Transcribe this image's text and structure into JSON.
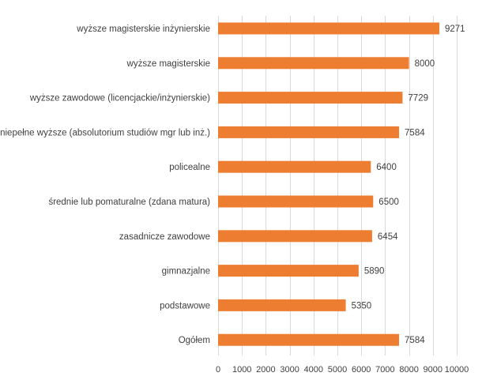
{
  "chart_data": {
    "type": "bar",
    "orientation": "horizontal",
    "categories": [
      "wyższe magisterskie inżynierskie",
      "wyższe magisterskie",
      "wyższe zawodowe (licencjackie/inżynierskie)",
      "niepełne wyższe (absolutorium studiów mgr lub inż.)",
      "policealne",
      "średnie lub pomaturalne (zdana matura)",
      "zasadnicze zawodowe",
      "gimnazjalne",
      "podstawowe",
      "Ogółem"
    ],
    "values": [
      9271,
      8000,
      7729,
      7584,
      6400,
      6500,
      6454,
      5890,
      5350,
      7584
    ],
    "xlim": [
      0,
      10000
    ],
    "xticks": [
      "0",
      "1000",
      "2000",
      "3000",
      "4000",
      "5000",
      "6000",
      "7000",
      "8000",
      "9000",
      "10000"
    ],
    "grid": "vertical",
    "legend": "none",
    "bar_color": "#ED7D31"
  }
}
